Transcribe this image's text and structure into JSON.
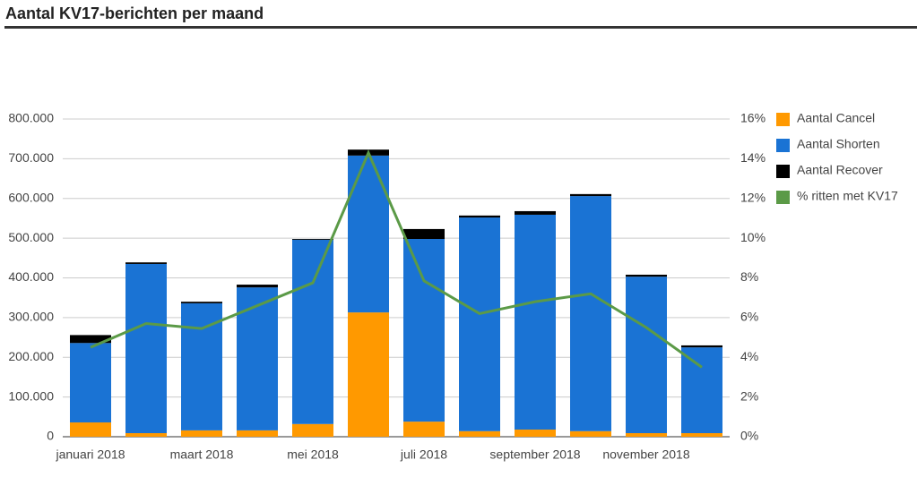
{
  "chart_data": {
    "type": "bar",
    "stacked": true,
    "title": "Aantal KV17-berichten per maand",
    "categories": [
      "januari 2018",
      null,
      "maart 2018",
      null,
      "mei 2018",
      null,
      "juli 2018",
      null,
      "september 2018",
      null,
      "november 2018",
      null
    ],
    "series": [
      {
        "name": "Aantal Cancel",
        "color": "#ff9900",
        "values": [
          36000,
          9000,
          16000,
          16000,
          32000,
          313000,
          38000,
          14000,
          18000,
          14000,
          9000,
          9000
        ]
      },
      {
        "name": "Aantal Shorten",
        "color": "#1a73d4",
        "values": [
          200000,
          426000,
          320000,
          360000,
          464000,
          395000,
          460000,
          538000,
          541000,
          592000,
          394000,
          216000
        ]
      },
      {
        "name": "Aantal Recover",
        "color": "#000000",
        "values": [
          20000,
          4000,
          4000,
          7000,
          2000,
          15000,
          25000,
          5000,
          9000,
          5000,
          5000,
          5000
        ]
      },
      {
        "name": "% ritten met KV17",
        "color": "#5b9a47",
        "type": "line",
        "axis": "y2",
        "values": [
          4.5,
          5.7,
          5.45,
          6.6,
          7.75,
          14.3,
          7.85,
          6.2,
          6.8,
          7.2,
          5.5,
          3.5
        ]
      }
    ],
    "ylim": [
      0,
      800000
    ],
    "yticks": [
      0,
      {
        "value": 100000,
        "label": "100.000"
      },
      {
        "value": 200000,
        "label": "200.000"
      },
      {
        "value": 300000,
        "label": "300.000"
      },
      {
        "value": 400000,
        "label": "400.000"
      },
      {
        "value": 500000,
        "label": "500.000"
      },
      {
        "value": 600000,
        "label": "600.000"
      },
      {
        "value": 700000,
        "label": "700.000"
      },
      {
        "value": 800000,
        "label": "800.000"
      }
    ],
    "y2lim": [
      0,
      16
    ],
    "y2ticks": [
      {
        "value": 0,
        "label": "0%"
      },
      {
        "value": 2,
        "label": "2%"
      },
      {
        "value": 4,
        "label": "4%"
      },
      {
        "value": 6,
        "label": "6%"
      },
      {
        "value": 8,
        "label": "8%"
      },
      {
        "value": 10,
        "label": "10%"
      },
      {
        "value": 12,
        "label": "12%"
      },
      {
        "value": 14,
        "label": "14%"
      },
      {
        "value": 16,
        "label": "16%"
      }
    ],
    "grid": true,
    "legend": "right"
  }
}
